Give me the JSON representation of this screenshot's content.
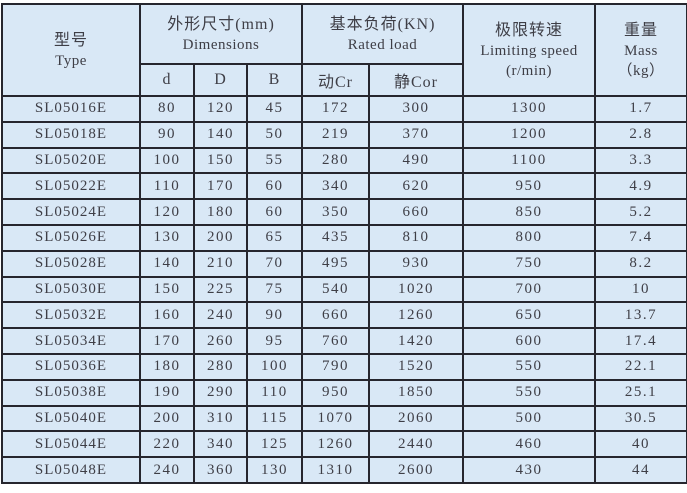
{
  "colors": {
    "cell_background": "#d9e8f6",
    "grid_border": "#26262e",
    "text": "#3e3e46",
    "page_background": "#ffffff"
  },
  "header": {
    "type_zh": "型号",
    "type_en": "Type",
    "dimensions_zh": "外形尺寸(mm)",
    "dimensions_en": "Dimensions",
    "rated_load_zh": "基本负荷(KN)",
    "rated_load_en": "Rated load",
    "limiting_speed_zh": "极限转速",
    "limiting_speed_en": "Limiting speed",
    "limiting_speed_unit": "(r/min)",
    "mass_zh": "重量",
    "mass_en": "Mass",
    "mass_unit": "（kg）",
    "sub": [
      "d",
      "D",
      "B",
      "动Cr",
      "静Cor"
    ]
  },
  "rows": [
    [
      "SL05016E",
      "80",
      "120",
      "45",
      "172",
      "300",
      "1300",
      "1.7"
    ],
    [
      "SL05018E",
      "90",
      "140",
      "50",
      "219",
      "370",
      "1200",
      "2.8"
    ],
    [
      "SL05020E",
      "100",
      "150",
      "55",
      "280",
      "490",
      "1100",
      "3.3"
    ],
    [
      "SL05022E",
      "110",
      "170",
      "60",
      "340",
      "620",
      "950",
      "4.9"
    ],
    [
      "SL05024E",
      "120",
      "180",
      "60",
      "350",
      "660",
      "850",
      "5.2"
    ],
    [
      "SL05026E",
      "130",
      "200",
      "65",
      "435",
      "810",
      "800",
      "7.4"
    ],
    [
      "SL05028E",
      "140",
      "210",
      "70",
      "495",
      "930",
      "750",
      "8.2"
    ],
    [
      "SL05030E",
      "150",
      "225",
      "75",
      "540",
      "1020",
      "700",
      "10"
    ],
    [
      "SL05032E",
      "160",
      "240",
      "90",
      "660",
      "1260",
      "650",
      "13.7"
    ],
    [
      "SL05034E",
      "170",
      "260",
      "95",
      "760",
      "1420",
      "600",
      "17.4"
    ],
    [
      "SL05036E",
      "180",
      "280",
      "100",
      "790",
      "1520",
      "550",
      "22.1"
    ],
    [
      "SL05038E",
      "190",
      "290",
      "110",
      "950",
      "1850",
      "550",
      "25.1"
    ],
    [
      "SL05040E",
      "200",
      "310",
      "115",
      "1070",
      "2060",
      "500",
      "30.5"
    ],
    [
      "SL05044E",
      "220",
      "340",
      "125",
      "1260",
      "2440",
      "460",
      "40"
    ],
    [
      "SL05048E",
      "240",
      "360",
      "130",
      "1310",
      "2600",
      "430",
      "44"
    ]
  ],
  "chart_data": {
    "type": "table",
    "title": "Bearing specifications SL050xxE series",
    "columns": [
      "型号 Type",
      "d (mm)",
      "D (mm)",
      "B (mm)",
      "动Cr (KN)",
      "静Cor (KN)",
      "极限转速 Limiting speed (r/min)",
      "重量 Mass (kg)"
    ],
    "rows": [
      [
        "SL05016E",
        80,
        120,
        45,
        172,
        300,
        1300,
        1.7
      ],
      [
        "SL05018E",
        90,
        140,
        50,
        219,
        370,
        1200,
        2.8
      ],
      [
        "SL05020E",
        100,
        150,
        55,
        280,
        490,
        1100,
        3.3
      ],
      [
        "SL05022E",
        110,
        170,
        60,
        340,
        620,
        950,
        4.9
      ],
      [
        "SL05024E",
        120,
        180,
        60,
        350,
        660,
        850,
        5.2
      ],
      [
        "SL05026E",
        130,
        200,
        65,
        435,
        810,
        800,
        7.4
      ],
      [
        "SL05028E",
        140,
        210,
        70,
        495,
        930,
        750,
        8.2
      ],
      [
        "SL05030E",
        150,
        225,
        75,
        540,
        1020,
        700,
        10
      ],
      [
        "SL05032E",
        160,
        240,
        90,
        660,
        1260,
        650,
        13.7
      ],
      [
        "SL05034E",
        170,
        260,
        95,
        760,
        1420,
        600,
        17.4
      ],
      [
        "SL05036E",
        180,
        280,
        100,
        790,
        1520,
        550,
        22.1
      ],
      [
        "SL05038E",
        190,
        290,
        110,
        950,
        1850,
        550,
        25.1
      ],
      [
        "SL05040E",
        200,
        310,
        115,
        1070,
        2060,
        500,
        30.5
      ],
      [
        "SL05044E",
        220,
        340,
        125,
        1260,
        2440,
        460,
        40
      ],
      [
        "SL05048E",
        240,
        360,
        130,
        1310,
        2600,
        430,
        44
      ]
    ]
  }
}
